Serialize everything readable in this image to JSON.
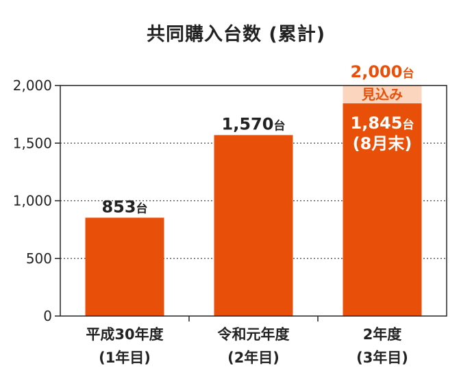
{
  "chart_data": {
    "type": "bar",
    "title": "共同購入台数 (累計)",
    "categories": [
      {
        "line1": "平成30年度",
        "line2": "(1年目)"
      },
      {
        "line1": "令和元年度",
        "line2": "(2年目)"
      },
      {
        "line1": "2年度",
        "line2": "(3年目)"
      }
    ],
    "values": [
      853,
      1570,
      1845
    ],
    "value_labels": [
      "853",
      "1,570",
      "1,845"
    ],
    "unit": "台",
    "last_bar_note": "(8月末)",
    "estimate": {
      "value": 2000,
      "label": "2,000",
      "caption": "見込み",
      "color": "#fbd5bd"
    },
    "bar_color": "#e8500a",
    "ylim": [
      0,
      2000
    ],
    "yticks": [
      0,
      500,
      1000,
      1500,
      2000
    ],
    "ytick_labels": [
      "0",
      "500",
      "1,000",
      "1,500",
      "2,000"
    ],
    "grid": "dotted"
  }
}
